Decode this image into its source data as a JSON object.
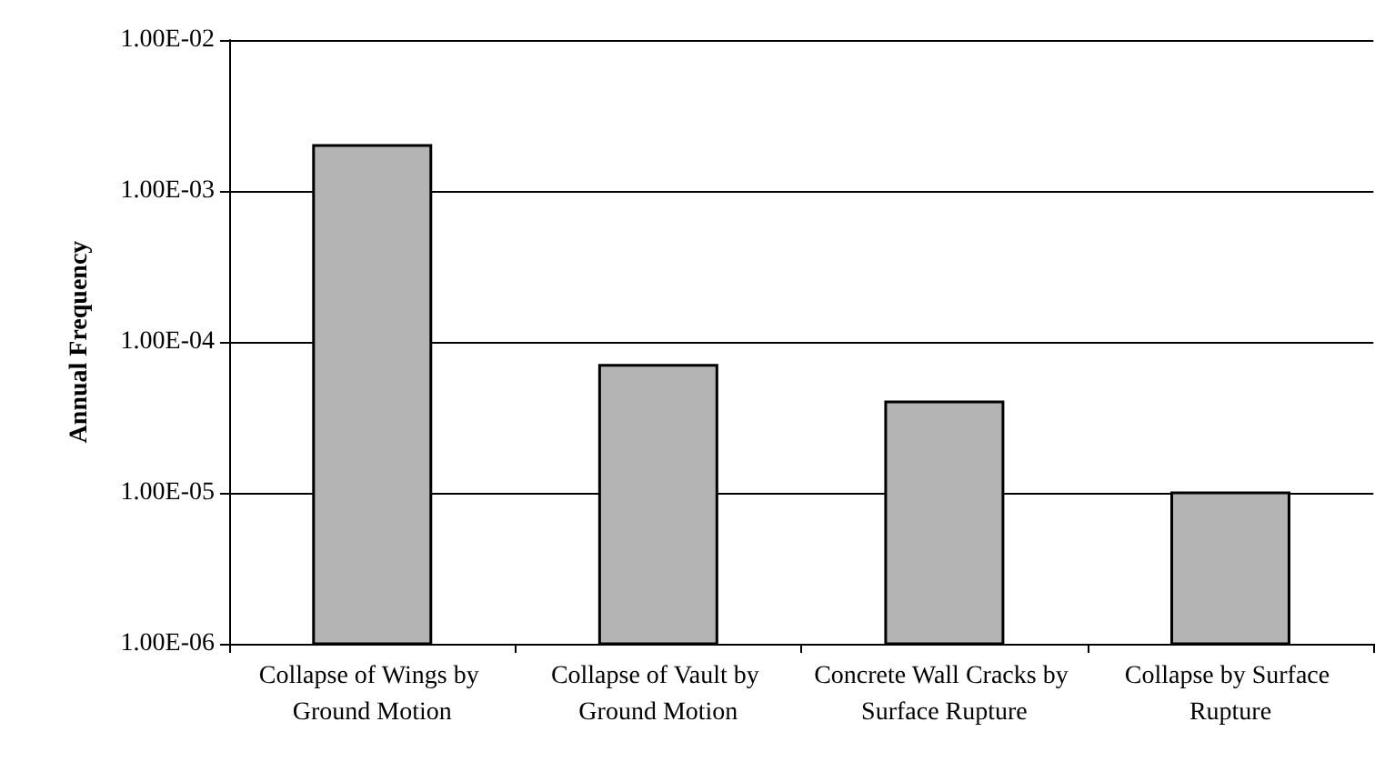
{
  "chart_data": {
    "type": "bar",
    "ylabel": "Annual Frequency",
    "categories": [
      "Collapse of Wings by Ground Motion",
      "Collapse of Vault by Ground Motion",
      "Concrete Wall Cracks by Surface Rupture",
      "Collapse by Surface Rupture"
    ],
    "values": [
      0.002,
      7e-05,
      4e-05,
      1e-05
    ],
    "color": "#b4b4b4",
    "log": "y",
    "ylim": [
      1e-06,
      0.01
    ],
    "yticks": [
      {
        "value": 1e-06,
        "label": "1.00E-06"
      },
      {
        "value": 1e-05,
        "label": "1.00E-05"
      },
      {
        "value": 0.0001,
        "label": "1.00E-04"
      },
      {
        "value": 0.001,
        "label": "1.00E-03"
      },
      {
        "value": 0.01,
        "label": "1.00E-02"
      }
    ],
    "grid": "y"
  }
}
